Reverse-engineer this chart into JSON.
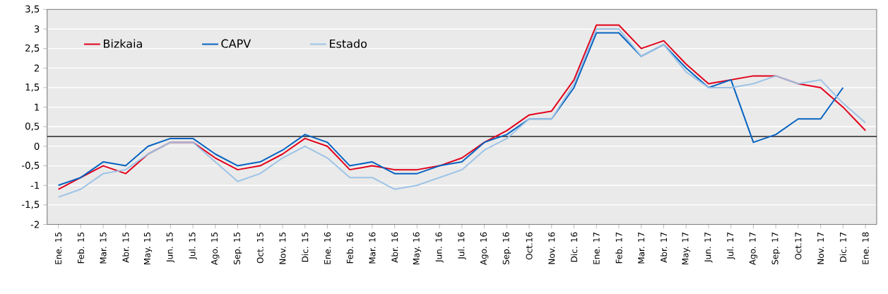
{
  "chart_data": {
    "type": "line",
    "categories": [
      "Ene. 15",
      "Feb. 15",
      "Mar. 15",
      "Abr. 15",
      "May. 15",
      "Jun. 15",
      "Jul. 15",
      "Ago. 15",
      "Sep. 15",
      "Oct. 15",
      "Nov. 15",
      "Dic. 15",
      "Ene. 16",
      "Feb. 16",
      "Mar. 16",
      "Abr. 16",
      "May. 16",
      "Jun. 16",
      "Jul. 16",
      "Ago. 16",
      "Sep. 16",
      "Oct.16",
      "Nov. 16",
      "Dic. 16",
      "Ene. 17",
      "Feb. 17",
      "Mar. 17",
      "Abr. 17",
      "May. 17",
      "Jun. 17",
      "Jul. 17",
      "Ago. 17",
      "Sep. 17",
      "Oct.17",
      "Nov. 17",
      "Dic. 17",
      "Ene. 18"
    ],
    "series": [
      {
        "name": "Bizkaia",
        "color": "#e2001a",
        "values": [
          -1.1,
          -0.8,
          -0.5,
          -0.7,
          -0.2,
          0.1,
          0.1,
          -0.3,
          -0.6,
          -0.5,
          -0.2,
          0.2,
          0,
          -0.6,
          -0.5,
          -0.6,
          -0.6,
          -0.5,
          -0.3,
          0.1,
          0.4,
          0.8,
          0.9,
          1.7,
          3.1,
          3.1,
          2.5,
          2.7,
          2.1,
          1.6,
          1.7,
          1.8,
          1.8,
          1.6,
          1.5,
          1.0,
          0.4
        ]
      },
      {
        "name": "CAPV",
        "color": "#0563c1",
        "values": [
          -1.0,
          -0.8,
          -0.4,
          -0.5,
          0,
          0.2,
          0.2,
          -0.2,
          -0.5,
          -0.4,
          -0.1,
          0.3,
          0.1,
          -0.5,
          -0.4,
          -0.7,
          -0.7,
          -0.5,
          -0.4,
          0.1,
          0.3,
          0.7,
          0.7,
          1.5,
          2.9,
          2.9,
          2.3,
          2.6,
          2.0,
          1.5,
          1.7,
          0.1,
          0.3,
          0.7,
          0.7,
          1.5,
          null
        ]
      },
      {
        "name": "Estado",
        "color": "#9dc3e6",
        "values": [
          -1.3,
          -1.1,
          -0.7,
          -0.6,
          -0.2,
          0.1,
          0.1,
          -0.4,
          -0.9,
          -0.7,
          -0.3,
          0,
          -0.3,
          -0.8,
          -0.8,
          -1.1,
          -1.0,
          -0.8,
          -0.6,
          -0.1,
          0.2,
          0.7,
          0.7,
          1.6,
          3.0,
          3.0,
          2.3,
          2.6,
          1.9,
          1.5,
          1.5,
          1.6,
          1.8,
          1.6,
          1.7,
          1.1,
          0.6
        ]
      }
    ],
    "ylim": [
      -2,
      3.5
    ],
    "yticks": [
      {
        "value": -2,
        "label": "-2"
      },
      {
        "value": -1.5,
        "label": "-1,5"
      },
      {
        "value": -1,
        "label": "-1"
      },
      {
        "value": -0.5,
        "label": "-0,5"
      },
      {
        "value": 0,
        "label": "0"
      },
      {
        "value": 0.5,
        "label": "0,5"
      },
      {
        "value": 1,
        "label": "1"
      },
      {
        "value": 1.5,
        "label": "1,5"
      },
      {
        "value": 2,
        "label": "2"
      },
      {
        "value": 2.5,
        "label": "2,5"
      },
      {
        "value": 3,
        "label": "3"
      },
      {
        "value": 3.5,
        "label": "3,5"
      }
    ],
    "ref_lines": [
      {
        "axis": "y",
        "value": 0.25,
        "color": "#000000"
      }
    ],
    "grid": "y",
    "legend": "top left",
    "marker": "none",
    "line_style": "solid"
  }
}
